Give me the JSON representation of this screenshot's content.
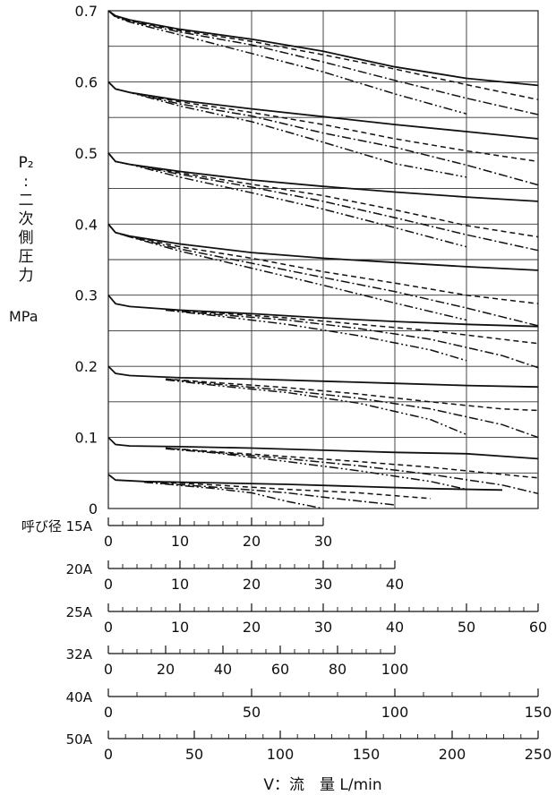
{
  "chart_data": {
    "type": "line",
    "ylabel_chars": [
      "P₂",
      ":",
      "二",
      "次",
      "側",
      "圧",
      "力"
    ],
    "yunit": "MPa",
    "xlabel": "V：流　量 L/min",
    "y_ticks": [
      "0",
      "0.1",
      "0.2",
      "0.3",
      "0.4",
      "0.5",
      "0.6",
      "0.7"
    ],
    "ylim": [
      0,
      0.7
    ],
    "xlim": [
      0,
      60
    ],
    "x_unit_basis": "25A scale (L/min)",
    "grid": true,
    "styles": [
      {
        "dash": "",
        "width": 1.8
      },
      {
        "dash": "6,4",
        "width": 1.5
      },
      {
        "dash": "10,3,2,3",
        "width": 1.5
      },
      {
        "dash": "10,3,2,3,2,3",
        "width": 1.5
      }
    ],
    "series": [
      {
        "set": 0.7,
        "style": 0,
        "points": [
          [
            0,
            0.7
          ],
          [
            1,
            0.693
          ],
          [
            3,
            0.687
          ],
          [
            10,
            0.674
          ],
          [
            20,
            0.66
          ],
          [
            30,
            0.643
          ],
          [
            40,
            0.621
          ],
          [
            50,
            0.605
          ],
          [
            60,
            0.595
          ]
        ]
      },
      {
        "set": 0.7,
        "style": 1,
        "points": [
          [
            0,
            0.7
          ],
          [
            1,
            0.692
          ],
          [
            3,
            0.686
          ],
          [
            10,
            0.672
          ],
          [
            20,
            0.657
          ],
          [
            30,
            0.638
          ],
          [
            40,
            0.618
          ],
          [
            50,
            0.596
          ],
          [
            60,
            0.575
          ]
        ]
      },
      {
        "set": 0.7,
        "style": 2,
        "points": [
          [
            0,
            0.7
          ],
          [
            1,
            0.692
          ],
          [
            3,
            0.685
          ],
          [
            10,
            0.67
          ],
          [
            20,
            0.652
          ],
          [
            30,
            0.628
          ],
          [
            40,
            0.602
          ],
          [
            50,
            0.577
          ],
          [
            60,
            0.554
          ]
        ]
      },
      {
        "set": 0.7,
        "style": 3,
        "points": [
          [
            0,
            0.7
          ],
          [
            1,
            0.691
          ],
          [
            3,
            0.684
          ],
          [
            10,
            0.666
          ],
          [
            20,
            0.64
          ],
          [
            30,
            0.614
          ],
          [
            40,
            0.583
          ],
          [
            50,
            0.555
          ]
        ]
      },
      {
        "set": 0.6,
        "style": 0,
        "points": [
          [
            0,
            0.6
          ],
          [
            1,
            0.59
          ],
          [
            3,
            0.585
          ],
          [
            10,
            0.574
          ],
          [
            20,
            0.562
          ],
          [
            30,
            0.551
          ],
          [
            40,
            0.54
          ],
          [
            50,
            0.53
          ],
          [
            60,
            0.52
          ]
        ]
      },
      {
        "set": 0.6,
        "style": 1,
        "points": [
          [
            0,
            0.6
          ],
          [
            1,
            0.59
          ],
          [
            3,
            0.585
          ],
          [
            10,
            0.572
          ],
          [
            20,
            0.557
          ],
          [
            30,
            0.54
          ],
          [
            40,
            0.52
          ],
          [
            50,
            0.503
          ],
          [
            60,
            0.488
          ]
        ]
      },
      {
        "set": 0.6,
        "style": 2,
        "points": [
          [
            0,
            0.6
          ],
          [
            1,
            0.59
          ],
          [
            3,
            0.585
          ],
          [
            10,
            0.569
          ],
          [
            20,
            0.552
          ],
          [
            30,
            0.528
          ],
          [
            40,
            0.508
          ],
          [
            50,
            0.483
          ],
          [
            60,
            0.455
          ]
        ]
      },
      {
        "set": 0.6,
        "style": 3,
        "points": [
          [
            0,
            0.6
          ],
          [
            1,
            0.59
          ],
          [
            3,
            0.585
          ],
          [
            10,
            0.566
          ],
          [
            20,
            0.544
          ],
          [
            30,
            0.515
          ],
          [
            40,
            0.485
          ],
          [
            50,
            0.466
          ]
        ]
      },
      {
        "set": 0.5,
        "style": 0,
        "points": [
          [
            0,
            0.5
          ],
          [
            1,
            0.488
          ],
          [
            3,
            0.484
          ],
          [
            10,
            0.474
          ],
          [
            20,
            0.462
          ],
          [
            30,
            0.453
          ],
          [
            40,
            0.445
          ],
          [
            50,
            0.438
          ],
          [
            60,
            0.432
          ]
        ]
      },
      {
        "set": 0.5,
        "style": 1,
        "points": [
          [
            0,
            0.5
          ],
          [
            1,
            0.488
          ],
          [
            3,
            0.484
          ],
          [
            10,
            0.472
          ],
          [
            20,
            0.456
          ],
          [
            30,
            0.44
          ],
          [
            40,
            0.42
          ],
          [
            50,
            0.398
          ],
          [
            60,
            0.382
          ]
        ]
      },
      {
        "set": 0.5,
        "style": 2,
        "points": [
          [
            0,
            0.5
          ],
          [
            1,
            0.488
          ],
          [
            3,
            0.484
          ],
          [
            10,
            0.47
          ],
          [
            20,
            0.452
          ],
          [
            30,
            0.432
          ],
          [
            40,
            0.409
          ],
          [
            50,
            0.385
          ],
          [
            60,
            0.363
          ]
        ]
      },
      {
        "set": 0.5,
        "style": 3,
        "points": [
          [
            0,
            0.5
          ],
          [
            1,
            0.488
          ],
          [
            3,
            0.484
          ],
          [
            10,
            0.466
          ],
          [
            20,
            0.444
          ],
          [
            30,
            0.421
          ],
          [
            40,
            0.395
          ],
          [
            50,
            0.368
          ]
        ]
      },
      {
        "set": 0.4,
        "style": 0,
        "points": [
          [
            0,
            0.4
          ],
          [
            1,
            0.388
          ],
          [
            3,
            0.383
          ],
          [
            10,
            0.372
          ],
          [
            20,
            0.36
          ],
          [
            30,
            0.352
          ],
          [
            40,
            0.346
          ],
          [
            50,
            0.34
          ],
          [
            60,
            0.335
          ]
        ]
      },
      {
        "set": 0.4,
        "style": 1,
        "points": [
          [
            0,
            0.4
          ],
          [
            1,
            0.388
          ],
          [
            3,
            0.383
          ],
          [
            10,
            0.368
          ],
          [
            20,
            0.352
          ],
          [
            30,
            0.333
          ],
          [
            40,
            0.317
          ],
          [
            50,
            0.3
          ],
          [
            60,
            0.288
          ]
        ]
      },
      {
        "set": 0.4,
        "style": 2,
        "points": [
          [
            0,
            0.4
          ],
          [
            1,
            0.388
          ],
          [
            3,
            0.382
          ],
          [
            10,
            0.365
          ],
          [
            20,
            0.345
          ],
          [
            30,
            0.325
          ],
          [
            40,
            0.305
          ],
          [
            50,
            0.282
          ],
          [
            60,
            0.257
          ]
        ]
      },
      {
        "set": 0.4,
        "style": 3,
        "points": [
          [
            0,
            0.4
          ],
          [
            1,
            0.388
          ],
          [
            3,
            0.382
          ],
          [
            10,
            0.362
          ],
          [
            20,
            0.338
          ],
          [
            30,
            0.314
          ],
          [
            40,
            0.289
          ],
          [
            50,
            0.265
          ]
        ]
      },
      {
        "set": 0.3,
        "style": 0,
        "points": [
          [
            0,
            0.3
          ],
          [
            1,
            0.288
          ],
          [
            3,
            0.284
          ],
          [
            10,
            0.279
          ],
          [
            20,
            0.274
          ],
          [
            30,
            0.268
          ],
          [
            40,
            0.263
          ],
          [
            50,
            0.259
          ],
          [
            60,
            0.256
          ]
        ]
      },
      {
        "set": 0.3,
        "style": 1,
        "points": [
          [
            8,
            0.28
          ],
          [
            15,
            0.275
          ],
          [
            25,
            0.268
          ],
          [
            35,
            0.259
          ],
          [
            45,
            0.25
          ],
          [
            55,
            0.238
          ],
          [
            60,
            0.232
          ]
        ]
      },
      {
        "set": 0.3,
        "style": 2,
        "points": [
          [
            8,
            0.279
          ],
          [
            15,
            0.273
          ],
          [
            25,
            0.265
          ],
          [
            35,
            0.253
          ],
          [
            45,
            0.238
          ],
          [
            55,
            0.215
          ],
          [
            60,
            0.198
          ]
        ]
      },
      {
        "set": 0.3,
        "style": 3,
        "points": [
          [
            8,
            0.279
          ],
          [
            15,
            0.271
          ],
          [
            25,
            0.259
          ],
          [
            35,
            0.243
          ],
          [
            45,
            0.223
          ],
          [
            50,
            0.208
          ]
        ]
      },
      {
        "set": 0.2,
        "style": 0,
        "points": [
          [
            0,
            0.2
          ],
          [
            1,
            0.19
          ],
          [
            3,
            0.187
          ],
          [
            10,
            0.184
          ],
          [
            20,
            0.182
          ],
          [
            30,
            0.179
          ],
          [
            40,
            0.176
          ],
          [
            50,
            0.173
          ],
          [
            60,
            0.171
          ]
        ]
      },
      {
        "set": 0.2,
        "style": 1,
        "points": [
          [
            8,
            0.182
          ],
          [
            15,
            0.177
          ],
          [
            25,
            0.17
          ],
          [
            35,
            0.161
          ],
          [
            45,
            0.15
          ],
          [
            55,
            0.14
          ],
          [
            60,
            0.138
          ]
        ]
      },
      {
        "set": 0.2,
        "style": 2,
        "points": [
          [
            8,
            0.182
          ],
          [
            15,
            0.175
          ],
          [
            25,
            0.166
          ],
          [
            35,
            0.155
          ],
          [
            45,
            0.14
          ],
          [
            55,
            0.118
          ],
          [
            60,
            0.1
          ]
        ]
      },
      {
        "set": 0.2,
        "style": 3,
        "points": [
          [
            8,
            0.181
          ],
          [
            15,
            0.173
          ],
          [
            25,
            0.163
          ],
          [
            35,
            0.148
          ],
          [
            45,
            0.125
          ],
          [
            50,
            0.104
          ]
        ]
      },
      {
        "set": 0.1,
        "style": 0,
        "points": [
          [
            0,
            0.1
          ],
          [
            1,
            0.09
          ],
          [
            3,
            0.088
          ],
          [
            10,
            0.087
          ],
          [
            20,
            0.085
          ],
          [
            30,
            0.082
          ],
          [
            40,
            0.079
          ],
          [
            50,
            0.077
          ],
          [
            60,
            0.07
          ]
        ]
      },
      {
        "set": 0.1,
        "style": 1,
        "points": [
          [
            8,
            0.085
          ],
          [
            15,
            0.08
          ],
          [
            25,
            0.073
          ],
          [
            35,
            0.066
          ],
          [
            45,
            0.058
          ],
          [
            55,
            0.048
          ],
          [
            60,
            0.043
          ]
        ]
      },
      {
        "set": 0.1,
        "style": 2,
        "points": [
          [
            8,
            0.085
          ],
          [
            15,
            0.079
          ],
          [
            25,
            0.07
          ],
          [
            35,
            0.06
          ],
          [
            45,
            0.048
          ],
          [
            55,
            0.033
          ],
          [
            60,
            0.021
          ]
        ]
      },
      {
        "set": 0.1,
        "style": 3,
        "points": [
          [
            8,
            0.084
          ],
          [
            15,
            0.078
          ],
          [
            25,
            0.066
          ],
          [
            35,
            0.053
          ],
          [
            45,
            0.038
          ],
          [
            50,
            0.027
          ]
        ]
      },
      {
        "set": 0.05,
        "style": 0,
        "points": [
          [
            0,
            0.048
          ],
          [
            1,
            0.04
          ],
          [
            5,
            0.038
          ],
          [
            15,
            0.036
          ],
          [
            25,
            0.034
          ],
          [
            35,
            0.031
          ],
          [
            45,
            0.028
          ],
          [
            55,
            0.026
          ]
        ]
      },
      {
        "set": 0.05,
        "style": 1,
        "points": [
          [
            5,
            0.038
          ],
          [
            15,
            0.033
          ],
          [
            25,
            0.027
          ],
          [
            35,
            0.022
          ],
          [
            45,
            0.014
          ]
        ]
      },
      {
        "set": 0.05,
        "style": 2,
        "points": [
          [
            5,
            0.037
          ],
          [
            15,
            0.03
          ],
          [
            25,
            0.022
          ],
          [
            30,
            0.016
          ],
          [
            40,
            0.005
          ]
        ]
      },
      {
        "set": 0.05,
        "style": 3,
        "points": [
          [
            5,
            0.037
          ],
          [
            15,
            0.028
          ],
          [
            20,
            0.022
          ],
          [
            25,
            0.01
          ],
          [
            30,
            0.0
          ]
        ]
      }
    ],
    "flow_scales": [
      {
        "label": "呼び径 15A",
        "max": 30,
        "minor": 2,
        "ticks": [
          0,
          10,
          20,
          30
        ]
      },
      {
        "label": "20A",
        "max": 40,
        "minor": 2,
        "ticks": [
          0,
          10,
          20,
          30,
          40
        ]
      },
      {
        "label": "25A",
        "max": 60,
        "minor": 2,
        "ticks": [
          0,
          10,
          20,
          30,
          40,
          50,
          60
        ]
      },
      {
        "label": "32A",
        "max": 100,
        "minor": 5,
        "ticks": [
          0,
          20,
          40,
          60,
          80,
          100
        ]
      },
      {
        "label": "40A",
        "max": 150,
        "minor": 10,
        "ticks": [
          0,
          50,
          100,
          150
        ]
      },
      {
        "label": "50A",
        "max": 250,
        "minor": 10,
        "ticks": [
          0,
          50,
          100,
          150,
          200,
          250
        ]
      }
    ]
  }
}
